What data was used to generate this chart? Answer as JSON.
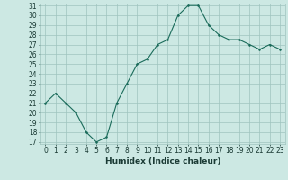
{
  "x": [
    0,
    1,
    2,
    3,
    4,
    5,
    6,
    7,
    8,
    9,
    10,
    11,
    12,
    13,
    14,
    15,
    16,
    17,
    18,
    19,
    20,
    21,
    22,
    23
  ],
  "y": [
    21,
    22,
    21,
    20,
    18,
    17,
    17.5,
    21,
    23,
    25,
    25.5,
    27,
    27.5,
    30,
    31,
    31,
    29,
    28,
    27.5,
    27.5,
    27,
    26.5,
    27,
    26.5
  ],
  "xlabel": "Humidex (Indice chaleur)",
  "line_color": "#1a6b5a",
  "marker_color": "#1a6b5a",
  "bg_color": "#cce8e3",
  "grid_color": "#9fc4be",
  "text_color": "#1a3a34",
  "ylim_min": 17,
  "ylim_max": 31,
  "yticks": [
    17,
    18,
    19,
    20,
    21,
    22,
    23,
    24,
    25,
    26,
    27,
    28,
    29,
    30,
    31
  ],
  "xticks": [
    0,
    1,
    2,
    3,
    4,
    5,
    6,
    7,
    8,
    9,
    10,
    11,
    12,
    13,
    14,
    15,
    16,
    17,
    18,
    19,
    20,
    21,
    22,
    23
  ],
  "font_size": 5.5,
  "xlabel_fontsize": 6.5,
  "marker_size": 2.5,
  "linewidth": 0.8
}
